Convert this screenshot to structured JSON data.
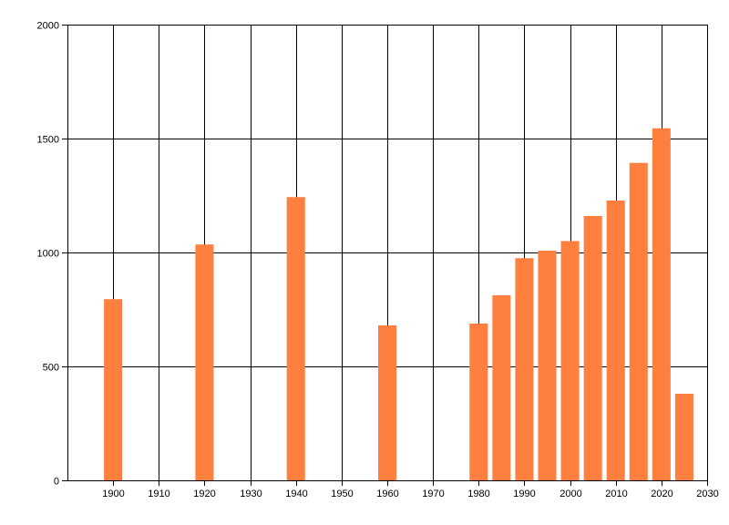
{
  "chart_data": {
    "type": "bar",
    "title": "",
    "xlabel": "",
    "ylabel": "",
    "xlim": [
      1890,
      2030
    ],
    "ylim": [
      0,
      2000
    ],
    "x_ticks": [
      1900,
      1910,
      1920,
      1930,
      1940,
      1950,
      1960,
      1970,
      1980,
      1990,
      2000,
      2010,
      2020,
      2030
    ],
    "y_ticks": [
      0,
      500,
      1000,
      1500,
      2000
    ],
    "grid": true,
    "legend": "none",
    "series": [
      {
        "x": [
          1900,
          1920,
          1940,
          1960,
          1980,
          1985,
          1990,
          1995,
          2000,
          2005,
          2010,
          2015,
          2020,
          2025
        ],
        "values": [
          795,
          1035,
          1243,
          680,
          688,
          812,
          975,
          1008,
          1050,
          1160,
          1228,
          1393,
          1545,
          380
        ]
      }
    ],
    "colors": {
      "bar": "#ff7f3f",
      "grid": "#000000",
      "axis": "#000000",
      "background": "#ffffff"
    }
  }
}
